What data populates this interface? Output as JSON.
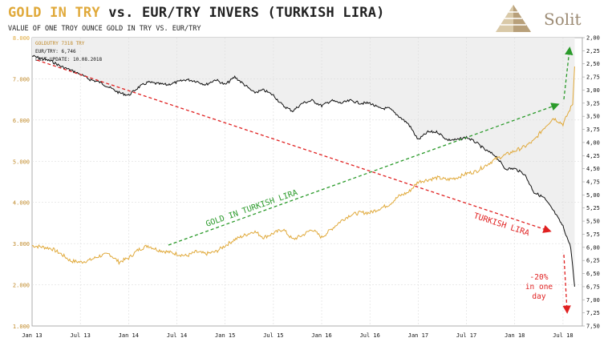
{
  "header": {
    "title_gold": "GOLD IN TRY",
    "title_rest": " vs. EUR/TRY INVERS (TURKISH LIRA)",
    "subtitle": "VALUE OF ONE TROY OUNCE GOLD IN TRY VS. EUR/TRY"
  },
  "logo": {
    "name": "Solit",
    "icon": "pyramid-icon"
  },
  "legend": {
    "line1": "GOLDUTRY 7318 TRY",
    "line2": "EUR/TRY: 6,746",
    "line3": "LAST UPDATE: 10.08.2018"
  },
  "annotations": {
    "gold_label": "GOLD IN TURKISH LIRA",
    "lira_label": "TURKISH LIRA",
    "drop_line1": "-20%",
    "drop_line2": "in one",
    "drop_line3": "day"
  },
  "colors": {
    "gold": "#e0a93a",
    "eurtry": "#111111",
    "green": "#2a9a2a",
    "red": "#e02020",
    "shade": "#efefef"
  },
  "chart_data": {
    "type": "line",
    "x_ticks": [
      "Jan 13",
      "Jul 13",
      "Jan 14",
      "Jul 14",
      "Jan 15",
      "Jul 15",
      "Jan 16",
      "Jul 16",
      "Jan 17",
      "Jul 17",
      "Jan 18",
      "Jul 18"
    ],
    "left_axis": {
      "ticks": [
        "1.000",
        "2.000",
        "3.000",
        "4.000",
        "5.000",
        "6.000",
        "7.000",
        "8.000"
      ],
      "ylim": [
        1000,
        8000
      ]
    },
    "right_axis": {
      "inverted": true,
      "ticks": [
        "2,00",
        "2,25",
        "2,50",
        "2,75",
        "3,00",
        "3,25",
        "3,50",
        "3,75",
        "4,00",
        "4,25",
        "4,50",
        "4,75",
        "5,00",
        "5,25",
        "5,50",
        "5,75",
        "6,00",
        "6,25",
        "6,50",
        "6,75",
        "7,00",
        "7,25",
        "7,50"
      ],
      "ylim": [
        2.0,
        7.5
      ]
    },
    "series": [
      {
        "name": "GOLDUTRY",
        "axis": "left",
        "x": [
          2013.0,
          2013.1,
          2013.2,
          2013.3,
          2013.4,
          2013.5,
          2013.6,
          2013.7,
          2013.8,
          2013.9,
          2014.0,
          2014.1,
          2014.2,
          2014.3,
          2014.4,
          2014.5,
          2014.6,
          2014.7,
          2014.8,
          2014.9,
          2015.0,
          2015.1,
          2015.2,
          2015.3,
          2015.4,
          2015.5,
          2015.6,
          2015.7,
          2015.8,
          2015.9,
          2016.0,
          2016.1,
          2016.2,
          2016.3,
          2016.4,
          2016.5,
          2016.6,
          2016.7,
          2016.8,
          2016.9,
          2017.0,
          2017.1,
          2017.2,
          2017.3,
          2017.4,
          2017.5,
          2017.6,
          2017.7,
          2017.8,
          2017.9,
          2018.0,
          2018.1,
          2018.2,
          2018.3,
          2018.4,
          2018.5,
          2018.6,
          2018.62
        ],
        "values": [
          2950,
          2920,
          2880,
          2750,
          2580,
          2550,
          2600,
          2700,
          2750,
          2550,
          2650,
          2850,
          2950,
          2850,
          2800,
          2750,
          2700,
          2800,
          2750,
          2800,
          2950,
          3100,
          3200,
          3300,
          3150,
          3250,
          3350,
          3100,
          3200,
          3350,
          3150,
          3350,
          3550,
          3700,
          3750,
          3750,
          3850,
          3950,
          4150,
          4250,
          4500,
          4550,
          4600,
          4550,
          4600,
          4700,
          4750,
          4900,
          5050,
          5150,
          5250,
          5350,
          5500,
          5800,
          6050,
          5900,
          6400,
          7300
        ]
      },
      {
        "name": "EUR/TRY",
        "axis": "right",
        "x": [
          2013.0,
          2013.1,
          2013.2,
          2013.3,
          2013.4,
          2013.5,
          2013.6,
          2013.7,
          2013.8,
          2013.9,
          2014.0,
          2014.1,
          2014.2,
          2014.3,
          2014.4,
          2014.5,
          2014.6,
          2014.7,
          2014.8,
          2014.9,
          2015.0,
          2015.1,
          2015.2,
          2015.3,
          2015.4,
          2015.5,
          2015.6,
          2015.7,
          2015.8,
          2015.9,
          2016.0,
          2016.1,
          2016.2,
          2016.3,
          2016.4,
          2016.5,
          2016.6,
          2016.7,
          2016.8,
          2016.9,
          2017.0,
          2017.1,
          2017.2,
          2017.3,
          2017.4,
          2017.5,
          2017.6,
          2017.7,
          2017.8,
          2017.9,
          2018.0,
          2018.1,
          2018.2,
          2018.3,
          2018.4,
          2018.5,
          2018.58,
          2018.62
        ],
        "values": [
          2.35,
          2.4,
          2.45,
          2.55,
          2.62,
          2.7,
          2.8,
          2.85,
          2.95,
          3.05,
          3.1,
          2.95,
          2.85,
          2.88,
          2.9,
          2.85,
          2.8,
          2.83,
          2.9,
          2.8,
          2.9,
          2.75,
          2.9,
          3.05,
          3.0,
          3.1,
          3.3,
          3.4,
          3.25,
          3.2,
          3.3,
          3.2,
          3.25,
          3.2,
          3.25,
          3.25,
          3.35,
          3.35,
          3.5,
          3.65,
          3.95,
          3.8,
          3.8,
          3.95,
          3.95,
          3.9,
          4.0,
          4.15,
          4.25,
          4.5,
          4.5,
          4.6,
          4.95,
          5.05,
          5.3,
          5.6,
          6.0,
          6.75
        ]
      }
    ]
  }
}
